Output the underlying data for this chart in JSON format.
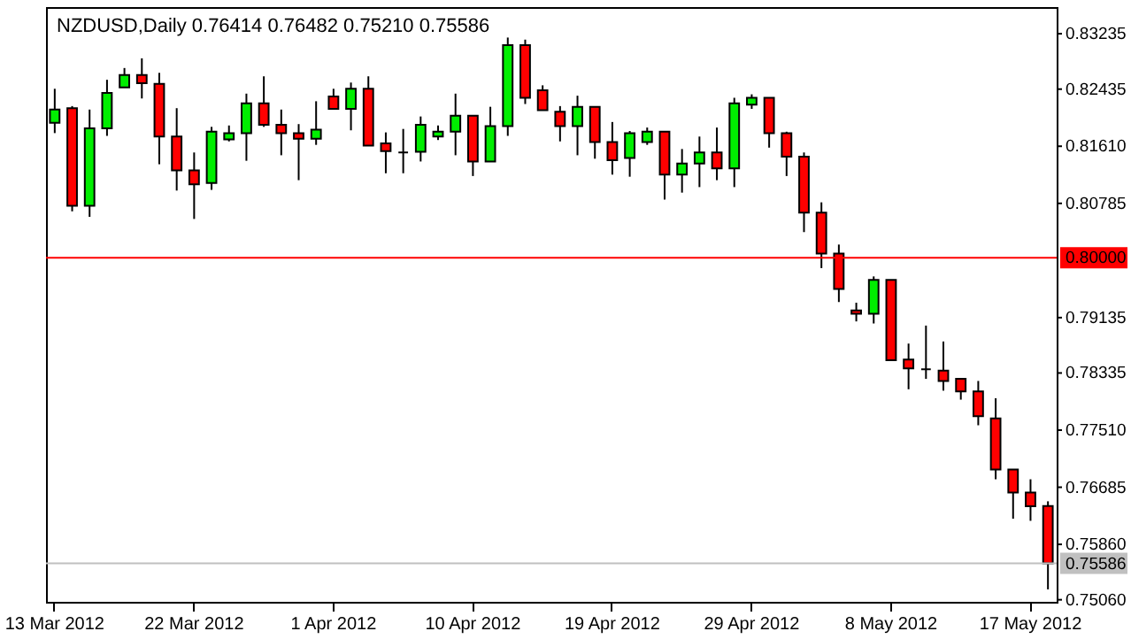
{
  "chart_data": {
    "type": "candlestick",
    "title": "NZDUSD,Daily 0.76414 0.76482 0.75210 0.75586",
    "categories": [
      "13 Mar 2012",
      null,
      null,
      null,
      null,
      null,
      null,
      null,
      "22 Mar 2012",
      null,
      null,
      null,
      null,
      null,
      null,
      null,
      "1 Apr 2012",
      null,
      null,
      null,
      null,
      null,
      null,
      null,
      "10 Apr 2012",
      null,
      null,
      null,
      null,
      null,
      null,
      null,
      "19 Apr 2012",
      null,
      null,
      null,
      null,
      null,
      null,
      null,
      "29 Apr 2012",
      null,
      null,
      null,
      null,
      null,
      null,
      null,
      "8 May 2012",
      null,
      null,
      null,
      null,
      null,
      null,
      null,
      "17 May 2012",
      null
    ],
    "ohlc": [
      [
        0.8195,
        0.8244,
        0.818,
        0.8214
      ],
      [
        0.8216,
        0.8219,
        0.8067,
        0.8075
      ],
      [
        0.8075,
        0.8214,
        0.8059,
        0.8187
      ],
      [
        0.8187,
        0.8257,
        0.8176,
        0.8238
      ],
      [
        0.8246,
        0.8274,
        0.8246,
        0.8264
      ],
      [
        0.8264,
        0.8288,
        0.823,
        0.8252
      ],
      [
        0.8251,
        0.8267,
        0.8135,
        0.8175
      ],
      [
        0.8175,
        0.8216,
        0.8097,
        0.8126
      ],
      [
        0.8126,
        0.8152,
        0.8056,
        0.8106
      ],
      [
        0.8108,
        0.8189,
        0.8098,
        0.8182
      ],
      [
        0.8171,
        0.8191,
        0.8168,
        0.818
      ],
      [
        0.818,
        0.8237,
        0.814,
        0.8223
      ],
      [
        0.8223,
        0.8262,
        0.8189,
        0.8192
      ],
      [
        0.8192,
        0.8214,
        0.8148,
        0.818
      ],
      [
        0.818,
        0.8193,
        0.8112,
        0.8172
      ],
      [
        0.8172,
        0.8226,
        0.8163,
        0.8185
      ],
      [
        0.8233,
        0.8244,
        0.8215,
        0.8215
      ],
      [
        0.8215,
        0.8253,
        0.8184,
        0.8244
      ],
      [
        0.8244,
        0.8262,
        0.8162,
        0.8162
      ],
      [
        0.8165,
        0.8181,
        0.8122,
        0.8154
      ],
      [
        0.8152,
        0.8186,
        0.8122,
        0.8152
      ],
      [
        0.8153,
        0.8204,
        0.8139,
        0.8192
      ],
      [
        0.8175,
        0.8191,
        0.817,
        0.8182
      ],
      [
        0.8182,
        0.8237,
        0.8148,
        0.8205
      ],
      [
        0.8205,
        0.8205,
        0.8118,
        0.8139
      ],
      [
        0.8139,
        0.8218,
        0.8139,
        0.819
      ],
      [
        0.819,
        0.8318,
        0.8176,
        0.8307
      ],
      [
        0.8307,
        0.8315,
        0.8222,
        0.8231
      ],
      [
        0.8242,
        0.8249,
        0.8213,
        0.8213
      ],
      [
        0.8211,
        0.8219,
        0.8168,
        0.819
      ],
      [
        0.819,
        0.8234,
        0.8148,
        0.8218
      ],
      [
        0.8218,
        0.8218,
        0.8143,
        0.8167
      ],
      [
        0.8167,
        0.8196,
        0.812,
        0.8141
      ],
      [
        0.8144,
        0.8183,
        0.8117,
        0.818
      ],
      [
        0.8167,
        0.8188,
        0.8163,
        0.8182
      ],
      [
        0.8182,
        0.8182,
        0.8084,
        0.812
      ],
      [
        0.812,
        0.8157,
        0.8094,
        0.8136
      ],
      [
        0.8136,
        0.8175,
        0.8102,
        0.8152
      ],
      [
        0.8152,
        0.8188,
        0.8112,
        0.8129
      ],
      [
        0.8129,
        0.8231,
        0.8102,
        0.8223
      ],
      [
        0.8221,
        0.8236,
        0.8215,
        0.8231
      ],
      [
        0.8231,
        0.8231,
        0.8159,
        0.818
      ],
      [
        0.818,
        0.8182,
        0.8118,
        0.8146
      ],
      [
        0.8146,
        0.8152,
        0.8037,
        0.8065
      ],
      [
        0.8065,
        0.808,
        0.7985,
        0.8006
      ],
      [
        0.8006,
        0.8019,
        0.7936,
        0.7955
      ],
      [
        0.7924,
        0.7935,
        0.7908,
        0.7919
      ],
      [
        0.7919,
        0.7973,
        0.7905,
        0.7968
      ],
      [
        0.7968,
        0.7968,
        0.7852,
        0.7852
      ],
      [
        0.7853,
        0.7876,
        0.781,
        0.784
      ],
      [
        0.7839,
        0.7902,
        0.7825,
        0.7839
      ],
      [
        0.7837,
        0.7879,
        0.7808,
        0.7822
      ],
      [
        0.7825,
        0.7825,
        0.7795,
        0.7807
      ],
      [
        0.7807,
        0.7822,
        0.7758,
        0.7771
      ],
      [
        0.7768,
        0.7797,
        0.768,
        0.7694
      ],
      [
        0.7694,
        0.7694,
        0.7623,
        0.7661
      ],
      [
        0.7661,
        0.768,
        0.762,
        0.7641
      ],
      [
        0.76414,
        0.76482,
        0.7521,
        0.75586
      ]
    ],
    "ylim": [
      0.7503,
      0.8362
    ],
    "yticks": [
      {
        "value": 0.83235,
        "label": "0.83235"
      },
      {
        "value": 0.82435,
        "label": "0.82435"
      },
      {
        "value": 0.8161,
        "label": "0.81610"
      },
      {
        "value": 0.80785,
        "label": "0.80785"
      },
      {
        "value": 0.79135,
        "label": "0.79135"
      },
      {
        "value": 0.78335,
        "label": "0.78335"
      },
      {
        "value": 0.7751,
        "label": "0.77510"
      },
      {
        "value": 0.76685,
        "label": "0.76685"
      },
      {
        "value": 0.7586,
        "label": "0.75860"
      },
      {
        "value": 0.7506,
        "label": "0.75060"
      }
    ],
    "ref_lines": [
      {
        "axis": "y",
        "value": 0.8,
        "label": "0.80000",
        "color": "#ff0000"
      },
      {
        "axis": "y",
        "value": 0.75586,
        "label": "0.75586",
        "color": "#c0c0c0"
      }
    ]
  }
}
